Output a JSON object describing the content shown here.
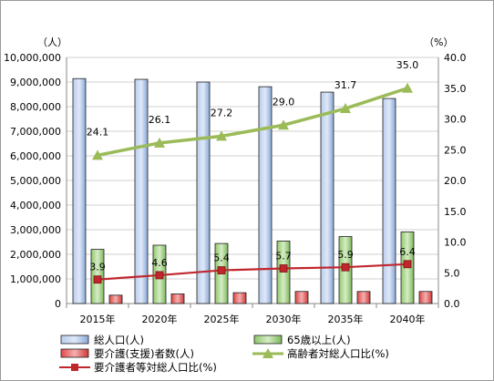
{
  "chart_data": {
    "type": "bar",
    "categories": [
      "2015年",
      "2020年",
      "2025年",
      "2030年",
      "2035年",
      "2040年"
    ],
    "y_left": {
      "unit_label": "（人）",
      "ylim": [
        0,
        10000000
      ],
      "step": 1000000
    },
    "y_right": {
      "unit_label": "（%）",
      "ylim": [
        0,
        40
      ],
      "step": 5
    },
    "grid": true,
    "legend_position": "bottom",
    "series": [
      {
        "name": "総人口(人)",
        "kind": "bar",
        "axis": "left",
        "color": "#7ea6dd",
        "values": [
          9140000,
          9110000,
          9000000,
          8810000,
          8590000,
          8330000
        ]
      },
      {
        "name": "65歳以上(人)",
        "kind": "bar",
        "axis": "left",
        "color": "#8fc86a",
        "values": [
          2200000,
          2370000,
          2440000,
          2540000,
          2720000,
          2910000
        ]
      },
      {
        "name": "要介護(支援)者数(人)",
        "kind": "bar",
        "axis": "left",
        "color": "#e24848",
        "values": [
          340000,
          390000,
          440000,
          490000,
          490000,
          490000
        ]
      },
      {
        "name": "高齢者対総人口比(%)",
        "kind": "line",
        "axis": "right",
        "color": "#9bbb59",
        "marker": "triangle",
        "values": [
          24.1,
          26.1,
          27.2,
          29.0,
          31.7,
          35.0
        ],
        "labels": [
          "24.1",
          "26.1",
          "27.2",
          "29.0",
          "31.7",
          "35.0"
        ]
      },
      {
        "name": "要介護者等対総人口比(%)",
        "kind": "line",
        "axis": "right",
        "color": "#c0272d",
        "marker": "square",
        "values": [
          3.9,
          4.6,
          5.4,
          5.7,
          5.9,
          6.4
        ],
        "labels": [
          "3.9",
          "4.6",
          "5.4",
          "5.7",
          "5.9",
          "6.4"
        ]
      }
    ]
  }
}
